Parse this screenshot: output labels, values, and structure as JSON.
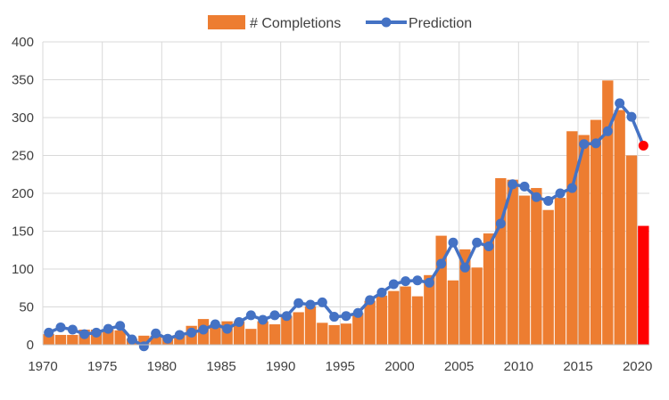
{
  "chart_data": {
    "type": "bar",
    "title": "",
    "xlabel": "",
    "ylabel": "",
    "ylim": [
      0,
      400
    ],
    "yticks": [
      0,
      50,
      100,
      150,
      200,
      250,
      300,
      350,
      400
    ],
    "xticks": [
      1970,
      1975,
      1980,
      1985,
      1990,
      1995,
      2000,
      2005,
      2010,
      2015,
      2020
    ],
    "grid": true,
    "legend_position": "top",
    "x": [
      1970,
      1971,
      1972,
      1973,
      1974,
      1975,
      1976,
      1977,
      1978,
      1979,
      1980,
      1981,
      1982,
      1983,
      1984,
      1985,
      1986,
      1987,
      1988,
      1989,
      1990,
      1991,
      1992,
      1993,
      1994,
      1995,
      1996,
      1997,
      1998,
      1999,
      2000,
      2001,
      2002,
      2003,
      2004,
      2005,
      2006,
      2007,
      2008,
      2009,
      2010,
      2011,
      2012,
      2013,
      2014,
      2015,
      2016,
      2017,
      2018,
      2019,
      2020
    ],
    "series": [
      {
        "name": "# Completions",
        "kind": "bar",
        "color": "#ED7D31",
        "highlight_color": "#FF0000",
        "highlight_index": 50,
        "values": [
          14,
          13,
          13,
          20,
          20,
          20,
          19,
          8,
          12,
          12,
          12,
          12,
          25,
          34,
          27,
          31,
          31,
          21,
          31,
          27,
          38,
          43,
          51,
          29,
          26,
          28,
          42,
          58,
          65,
          71,
          77,
          64,
          92,
          144,
          85,
          126,
          102,
          147,
          220,
          218,
          197,
          207,
          178,
          194,
          282,
          277,
          297,
          349,
          310,
          250,
          157
        ]
      },
      {
        "name": "Prediction",
        "kind": "line",
        "color": "#4472C4",
        "highlight_color": "#FF0000",
        "highlight_index": 50,
        "values": [
          16,
          23,
          20,
          14,
          16,
          21,
          25,
          7,
          -2,
          15,
          8,
          13,
          16,
          20,
          27,
          21,
          30,
          39,
          33,
          39,
          38,
          55,
          53,
          56,
          37,
          38,
          42,
          59,
          69,
          80,
          84,
          85,
          82,
          107,
          135,
          102,
          135,
          130,
          160,
          212,
          209,
          195,
          190,
          200,
          207,
          265,
          266,
          282,
          319,
          301,
          263
        ]
      }
    ]
  }
}
